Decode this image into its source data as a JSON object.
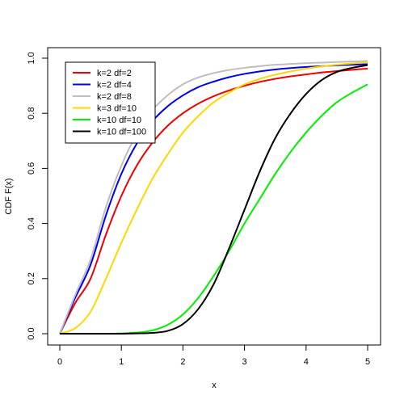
{
  "chart_data": {
    "type": "line",
    "xlabel": "x",
    "ylabel": "CDF F(x)",
    "xlim": [
      0,
      5
    ],
    "ylim": [
      0,
      1
    ],
    "x_ticks": [
      0,
      1,
      2,
      3,
      4,
      5
    ],
    "x_tick_labels": [
      "0",
      "1",
      "2",
      "3",
      "4",
      "5"
    ],
    "y_ticks": [
      0,
      0.2,
      0.4,
      0.6,
      0.8,
      1
    ],
    "y_tick_labels": [
      "0.0",
      "0.2",
      "0.4",
      "0.6",
      "0.8",
      "1.0"
    ],
    "grid": false,
    "legend_position": "top-left",
    "x": [
      0,
      0.25,
      0.5,
      0.75,
      1,
      1.25,
      1.5,
      1.75,
      2,
      2.25,
      2.5,
      2.75,
      3,
      3.25,
      3.5,
      3.75,
      4,
      4.25,
      4.5,
      4.75,
      5
    ],
    "series": [
      {
        "name": "k=2 df=2",
        "color": "#ee0000",
        "values": [
          0,
          0.111,
          0.2,
          0.36,
          0.5,
          0.61,
          0.692,
          0.754,
          0.8,
          0.835,
          0.862,
          0.883,
          0.9,
          0.914,
          0.925,
          0.934,
          0.941,
          0.948,
          0.953,
          0.958,
          0.962
        ]
      },
      {
        "name": "k=2 df=4",
        "color": "#0000ee",
        "values": [
          0,
          0.13,
          0.25,
          0.43,
          0.58,
          0.69,
          0.77,
          0.825,
          0.865,
          0.895,
          0.915,
          0.931,
          0.943,
          0.952,
          0.959,
          0.964,
          0.968,
          0.971,
          0.974,
          0.976,
          0.978
        ]
      },
      {
        "name": "k=2 df=8",
        "color": "#bebebe",
        "values": [
          0,
          0.14,
          0.27,
          0.46,
          0.61,
          0.725,
          0.81,
          0.865,
          0.905,
          0.93,
          0.946,
          0.957,
          0.965,
          0.971,
          0.976,
          0.979,
          0.982,
          0.984,
          0.986,
          0.988,
          0.99
        ]
      },
      {
        "name": "k=3 df=10",
        "color": "#ffd700",
        "values": [
          0,
          0.02,
          0.08,
          0.2,
          0.33,
          0.45,
          0.56,
          0.65,
          0.73,
          0.79,
          0.84,
          0.875,
          0.905,
          0.925,
          0.94,
          0.952,
          0.962,
          0.97,
          0.976,
          0.981,
          0.985
        ]
      },
      {
        "name": "k=10 df=10",
        "color": "#00ee00",
        "values": [
          0,
          0,
          0,
          0,
          0.001,
          0.004,
          0.012,
          0.032,
          0.07,
          0.13,
          0.21,
          0.3,
          0.4,
          0.49,
          0.58,
          0.66,
          0.73,
          0.79,
          0.84,
          0.875,
          0.905
        ]
      },
      {
        "name": "k=10 df=100",
        "color": "#000000",
        "values": [
          0,
          0,
          0,
          0,
          0,
          0.001,
          0.003,
          0.01,
          0.035,
          0.09,
          0.18,
          0.31,
          0.45,
          0.59,
          0.71,
          0.8,
          0.87,
          0.92,
          0.95,
          0.965,
          0.975
        ]
      }
    ]
  }
}
